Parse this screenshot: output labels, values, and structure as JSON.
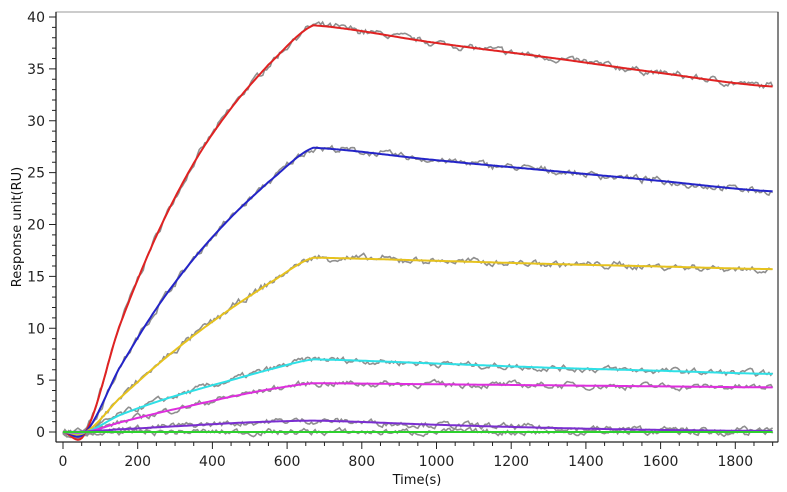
{
  "chart_data": {
    "type": "line",
    "title": "",
    "xlabel": "Time(s)",
    "ylabel": "Response unit(RU)",
    "xlim": [
      -20,
      1914
    ],
    "ylim": [
      -1,
      40.5
    ],
    "xticks": [
      0,
      200,
      400,
      600,
      800,
      1000,
      1200,
      1400,
      1600,
      1800
    ],
    "yticks": [
      0,
      5,
      10,
      15,
      20,
      25,
      30,
      35,
      40
    ],
    "grid": false,
    "legend": "none",
    "x": [
      0,
      60,
      150,
      250,
      350,
      450,
      550,
      670,
      1000,
      1300,
      1600,
      1900
    ],
    "split_index": 7,
    "raw_color": "#8f8f8f",
    "series": [
      {
        "name": "fit-red",
        "color": "#e02222",
        "values": [
          0,
          0,
          10.1,
          18.9,
          25.9,
          31.2,
          35.4,
          39.2,
          37.5,
          36.1,
          34.6,
          33.3
        ]
      },
      {
        "name": "fit-blue",
        "color": "#2424c8",
        "values": [
          0,
          0,
          6.1,
          11.9,
          16.7,
          20.7,
          24.1,
          27.4,
          26.2,
          25.2,
          24.2,
          23.2
        ]
      },
      {
        "name": "fit-yellow",
        "color": "#e6c21e",
        "values": [
          0,
          0,
          3.2,
          6.4,
          9.3,
          11.9,
          14.3,
          16.8,
          16.5,
          16.2,
          15.95,
          15.7
        ]
      },
      {
        "name": "fit-cyan",
        "color": "#2ee0e6",
        "values": [
          0,
          0,
          1.6,
          2.9,
          4.0,
          5.0,
          6.0,
          7.0,
          6.6,
          6.2,
          5.9,
          5.6
        ]
      },
      {
        "name": "fit-magenta",
        "color": "#de2ede",
        "values": [
          0,
          0,
          0.9,
          1.8,
          2.6,
          3.4,
          4.1,
          4.7,
          4.6,
          4.5,
          4.4,
          4.3
        ]
      },
      {
        "name": "fit-purple",
        "color": "#7a2ed0",
        "values": [
          0,
          0.05,
          0.25,
          0.45,
          0.65,
          0.85,
          1.0,
          1.1,
          0.7,
          0.4,
          0.2,
          0.1
        ]
      },
      {
        "name": "fit-green",
        "color": "#2ed02e",
        "values": [
          0,
          0,
          0,
          0,
          0,
          0,
          0,
          0,
          0,
          0,
          0,
          0
        ]
      }
    ]
  }
}
